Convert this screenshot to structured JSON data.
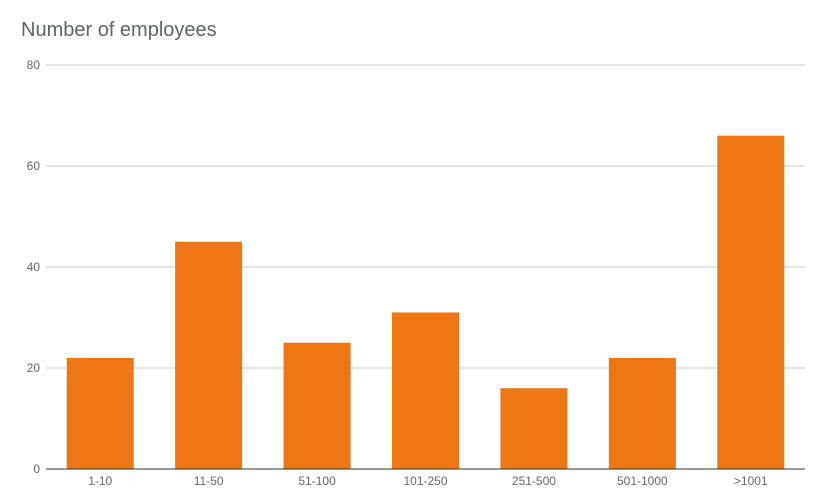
{
  "chart_data": {
    "type": "bar",
    "title": "Number of employees",
    "xlabel": "",
    "ylabel": "",
    "categories": [
      "1-10",
      "11-50",
      "51-100",
      "101-250",
      "251-500",
      "501-1000",
      ">1001"
    ],
    "values": [
      22,
      45,
      25,
      31,
      16,
      22,
      66
    ],
    "ylim": [
      0,
      80
    ],
    "yticks": [
      0,
      20,
      40,
      60,
      80
    ],
    "grid": true,
    "legend": "none",
    "bar_color": "#ed7615",
    "gridline_color": "#cccccc",
    "axis_color": "#333333"
  }
}
